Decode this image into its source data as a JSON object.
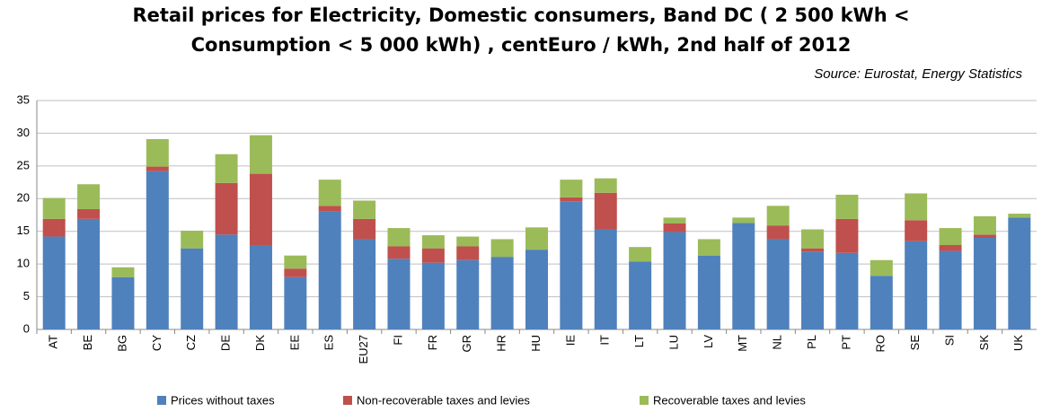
{
  "chart_data": {
    "type": "stacked_bar",
    "title": "Retail prices for Electricity, Domestic consumers, Band DC ( 2 500 kWh < Consumption < 5 000 kWh) , centEuro / kWh, 2nd half of 2012",
    "title_lines": [
      "Retail prices for Electricity, Domestic consumers, Band DC ( 2 500 kWh <",
      "Consumption < 5 000 kWh) , centEuro / kWh, 2nd half of 2012"
    ],
    "subtitle": "Source: Eurostat, Energy Statistics",
    "categories": [
      "AT",
      "BE",
      "BG",
      "CY",
      "CZ",
      "DE",
      "DK",
      "EE",
      "ES",
      "EU27",
      "FI",
      "FR",
      "GR",
      "HR",
      "HU",
      "IE",
      "IT",
      "LT",
      "LU",
      "LV",
      "MT",
      "NL",
      "PL",
      "PT",
      "RO",
      "SE",
      "SI",
      "SK",
      "UK"
    ],
    "series": [
      {
        "name": "Prices without taxes",
        "color": "#4f81bd",
        "values": [
          14.2,
          16.9,
          8.0,
          24.2,
          12.4,
          14.5,
          12.9,
          8.0,
          18.0,
          13.8,
          10.8,
          10.2,
          10.6,
          11.1,
          12.2,
          19.6,
          15.3,
          10.4,
          14.9,
          11.3,
          16.3,
          13.8,
          11.9,
          11.7,
          8.2,
          13.5,
          12.0,
          14.0,
          17.1
        ]
      },
      {
        "name": "Non-recoverable taxes and levies",
        "color": "#c0504d",
        "values": [
          2.7,
          1.5,
          0,
          0.7,
          0,
          7.9,
          10.9,
          1.3,
          0.9,
          3.1,
          1.9,
          2.2,
          2.1,
          0,
          0,
          0.6,
          5.6,
          0,
          1.3,
          0,
          0,
          2.1,
          0.5,
          5.2,
          0,
          3.2,
          0.9,
          0.5,
          0
        ]
      },
      {
        "name": "Recoverable taxes and levies",
        "color": "#9bbb59",
        "values": [
          3.2,
          3.8,
          1.5,
          4.2,
          2.7,
          4.4,
          5.9,
          2.0,
          4.0,
          2.8,
          2.8,
          2.0,
          1.5,
          2.7,
          3.4,
          2.7,
          2.2,
          2.2,
          0.9,
          2.5,
          0.8,
          3.0,
          2.9,
          3.7,
          2.4,
          4.1,
          2.6,
          2.8,
          0.6
        ]
      }
    ],
    "ylim": [
      0,
      35
    ],
    "yticks": [
      0,
      5,
      10,
      15,
      20,
      25,
      30,
      35
    ],
    "grid": true,
    "legend": "bottom"
  }
}
